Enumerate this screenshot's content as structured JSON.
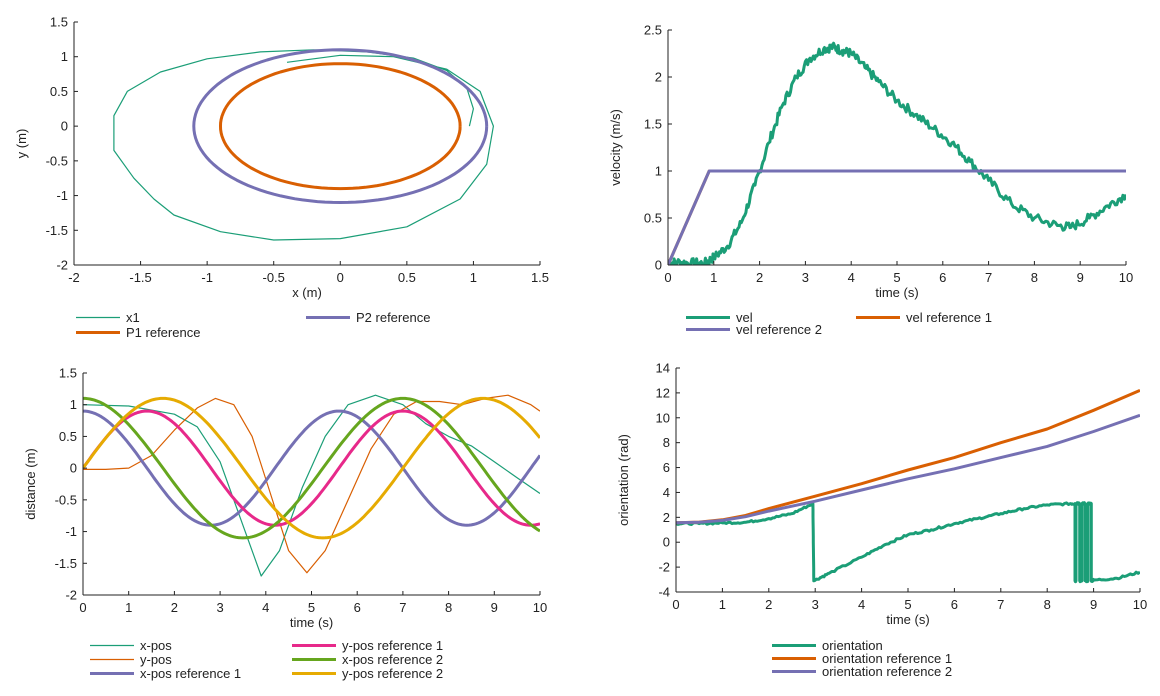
{
  "chart_data": [
    {
      "id": "traj",
      "type": "line",
      "title": "",
      "xlabel": "x (m)",
      "ylabel": "y (m)",
      "xlim": [
        -2,
        1.5
      ],
      "ylim": [
        -2,
        1.5
      ],
      "xticks": [
        "-2",
        "-1.5",
        "-1",
        "-0.5",
        "0",
        "0.5",
        "1",
        "1.5"
      ],
      "yticks": [
        "-2",
        "-1.5",
        "-1",
        "-0.5",
        "0",
        "0.5",
        "1",
        "1.5"
      ],
      "grid": false,
      "legend": "bottom",
      "series": [
        {
          "name": "x1",
          "color": "#1b9e77",
          "width": 1.2,
          "x": [
            0.97,
            1.0,
            0.95,
            0.8,
            0.55,
            0.2,
            -0.2,
            -0.6,
            -1.0,
            -1.35,
            -1.6,
            -1.7,
            -1.7,
            -1.55,
            -1.4,
            -1.25,
            -0.9,
            -0.5,
            0.0,
            0.5,
            0.9,
            1.1,
            1.15,
            1.05,
            0.8,
            0.4,
            0.0,
            -0.4
          ],
          "y": [
            0.0,
            0.25,
            0.55,
            0.8,
            0.98,
            1.07,
            1.1,
            1.07,
            0.97,
            0.78,
            0.5,
            0.15,
            -0.35,
            -0.75,
            -1.05,
            -1.28,
            -1.52,
            -1.64,
            -1.62,
            -1.45,
            -1.05,
            -0.55,
            0.0,
            0.5,
            0.82,
            1.0,
            1.02,
            0.92
          ]
        },
        {
          "name": "P1 reference",
          "color": "#d95f02",
          "width": 3,
          "ellipse": {
            "cx": 0,
            "cy": 0,
            "rx": 0.9,
            "ry": 0.9
          }
        },
        {
          "name": "P2 reference",
          "color": "#7570b3",
          "width": 3,
          "ellipse": {
            "cx": 0,
            "cy": 0,
            "rx": 1.1,
            "ry": 1.1
          }
        }
      ]
    },
    {
      "id": "vel",
      "type": "line",
      "title": "",
      "xlabel": "time (s)",
      "ylabel": "velocity (m/s)",
      "xlim": [
        0,
        10
      ],
      "ylim": [
        0,
        2.5
      ],
      "xticks": [
        "0",
        "1",
        "2",
        "3",
        "4",
        "5",
        "6",
        "7",
        "8",
        "9",
        "10"
      ],
      "yticks": [
        "0",
        "0.5",
        "1",
        "1.5",
        "2",
        "2.5"
      ],
      "grid": false,
      "legend": "bottom",
      "series": [
        {
          "name": "vel",
          "color": "#1b9e77",
          "width": 3,
          "x": [
            0,
            0.2,
            0.5,
            0.8,
            1.0,
            1.3,
            1.6,
            1.9,
            2.2,
            2.5,
            2.8,
            3.1,
            3.4,
            3.6,
            3.8,
            4.0,
            4.3,
            4.6,
            5.0,
            5.4,
            5.8,
            6.2,
            6.6,
            7.0,
            7.5,
            8.0,
            8.5,
            8.8,
            9.2,
            9.6,
            10.0
          ],
          "y": [
            0.02,
            0.03,
            0.02,
            0.02,
            0.08,
            0.2,
            0.45,
            0.85,
            1.3,
            1.7,
            2.0,
            2.2,
            2.3,
            2.32,
            2.28,
            2.25,
            2.1,
            1.95,
            1.75,
            1.6,
            1.45,
            1.3,
            1.1,
            0.9,
            0.65,
            0.5,
            0.42,
            0.4,
            0.5,
            0.63,
            0.75
          ],
          "noise": 0.05
        },
        {
          "name": "vel reference 1",
          "color": "#d95f02",
          "width": 3,
          "x": [
            0,
            0.9,
            10
          ],
          "y": [
            0,
            1,
            1
          ]
        },
        {
          "name": "vel reference 2",
          "color": "#7570b3",
          "width": 3,
          "x": [
            0,
            0.9,
            10
          ],
          "y": [
            0,
            1,
            1
          ]
        }
      ]
    },
    {
      "id": "dist",
      "type": "line",
      "title": "",
      "xlabel": "time (s)",
      "ylabel": "distance (m)",
      "xlim": [
        0,
        10
      ],
      "ylim": [
        -2,
        1.5
      ],
      "xticks": [
        "0",
        "1",
        "2",
        "3",
        "4",
        "5",
        "6",
        "7",
        "8",
        "9",
        "10"
      ],
      "yticks": [
        "-2",
        "-1.5",
        "-1",
        "-0.5",
        "0",
        "0.5",
        "1",
        "1.5"
      ],
      "grid": false,
      "legend": "bottom",
      "series": [
        {
          "name": "x-pos",
          "color": "#1b9e77",
          "width": 1.2,
          "x": [
            0,
            1,
            2,
            2.5,
            3.0,
            3.5,
            3.9,
            4.3,
            4.8,
            5.3,
            5.8,
            6.4,
            7.0,
            7.5,
            8.0,
            8.5,
            9.0,
            9.5,
            10
          ],
          "y": [
            1.0,
            0.98,
            0.85,
            0.65,
            0.1,
            -0.9,
            -1.7,
            -1.3,
            -0.3,
            0.5,
            1.0,
            1.15,
            1.0,
            0.7,
            0.5,
            0.35,
            0.1,
            -0.15,
            -0.4
          ]
        },
        {
          "name": "y-pos",
          "color": "#d95f02",
          "width": 1.2,
          "x": [
            0,
            0.5,
            1.0,
            1.5,
            2.0,
            2.5,
            2.9,
            3.3,
            3.7,
            4.1,
            4.5,
            4.9,
            5.3,
            5.8,
            6.3,
            6.8,
            7.3,
            7.8,
            8.3,
            8.8,
            9.3,
            9.8,
            10
          ],
          "y": [
            -0.02,
            -0.02,
            0.0,
            0.2,
            0.6,
            0.95,
            1.1,
            1.0,
            0.5,
            -0.4,
            -1.3,
            -1.65,
            -1.3,
            -0.5,
            0.3,
            0.85,
            1.05,
            1.05,
            1.0,
            1.1,
            1.15,
            1.0,
            0.9
          ]
        },
        {
          "name": "x-pos reference 1",
          "color": "#7570b3",
          "width": 3,
          "func": {
            "kind": "cos",
            "amp": 0.9,
            "period": 5.6,
            "phase": 0
          }
        },
        {
          "name": "y-pos reference 1",
          "color": "#e7298a",
          "width": 3,
          "func": {
            "kind": "sin",
            "amp": 0.9,
            "period": 5.6,
            "phase": 0
          }
        },
        {
          "name": "x-pos reference 2",
          "color": "#66a61e",
          "width": 3,
          "func": {
            "kind": "cos",
            "amp": 1.1,
            "period": 7.0,
            "phase": 0
          }
        },
        {
          "name": "y-pos reference 2",
          "color": "#e6ab02",
          "width": 3,
          "func": {
            "kind": "sin",
            "amp": 1.1,
            "period": 7.0,
            "phase": 0
          }
        }
      ]
    },
    {
      "id": "orient",
      "type": "line",
      "title": "",
      "xlabel": "time (s)",
      "ylabel": "orientation (rad)",
      "xlim": [
        0,
        10
      ],
      "ylim": [
        -4,
        14
      ],
      "xticks": [
        "0",
        "1",
        "2",
        "3",
        "4",
        "5",
        "6",
        "7",
        "8",
        "9",
        "10"
      ],
      "yticks": [
        "-4",
        "-2",
        "0",
        "2",
        "4",
        "6",
        "8",
        "10",
        "12",
        "14"
      ],
      "grid": false,
      "legend": "bottom",
      "series": [
        {
          "name": "orientation",
          "color": "#1b9e77",
          "width": 3,
          "x": [
            0,
            0.5,
            1.0,
            1.5,
            2.0,
            2.5,
            2.95,
            2.97,
            3.3,
            4.0,
            4.5,
            5.0,
            5.5,
            6.0,
            6.5,
            7.0,
            7.5,
            8.0,
            8.5,
            8.6,
            8.6,
            8.62,
            8.62,
            8.7,
            8.7,
            8.75,
            8.75,
            8.82,
            8.82,
            8.88,
            8.88,
            8.95,
            8.95,
            9.0,
            9.5,
            10.0
          ],
          "y": [
            1.5,
            1.5,
            1.55,
            1.6,
            1.9,
            2.3,
            3.1,
            -3.1,
            -2.5,
            -1.2,
            -0.2,
            0.6,
            1.0,
            1.5,
            1.9,
            2.3,
            2.7,
            3.0,
            3.1,
            3.1,
            -3.1,
            -3.1,
            3.1,
            3.1,
            -3.1,
            -3.1,
            3.1,
            3.1,
            -3.1,
            -3.1,
            3.1,
            3.1,
            -3.1,
            -3.05,
            -2.9,
            -2.4
          ],
          "noise": 0.08
        },
        {
          "name": "orientation reference 1",
          "color": "#d95f02",
          "width": 3,
          "x": [
            0,
            0.5,
            1.0,
            1.5,
            2,
            3,
            4,
            5,
            6,
            7,
            8,
            9,
            10
          ],
          "y": [
            1.57,
            1.62,
            1.8,
            2.15,
            2.7,
            3.7,
            4.7,
            5.8,
            6.8,
            8.0,
            9.1,
            10.6,
            12.2
          ]
        },
        {
          "name": "orientation reference 2",
          "color": "#7570b3",
          "width": 3,
          "x": [
            0,
            0.5,
            1.0,
            1.5,
            2,
            3,
            4,
            5,
            6,
            7,
            8,
            9,
            10
          ],
          "y": [
            1.57,
            1.6,
            1.75,
            2.05,
            2.5,
            3.3,
            4.2,
            5.1,
            5.9,
            6.8,
            7.7,
            8.9,
            10.2
          ]
        }
      ]
    }
  ]
}
